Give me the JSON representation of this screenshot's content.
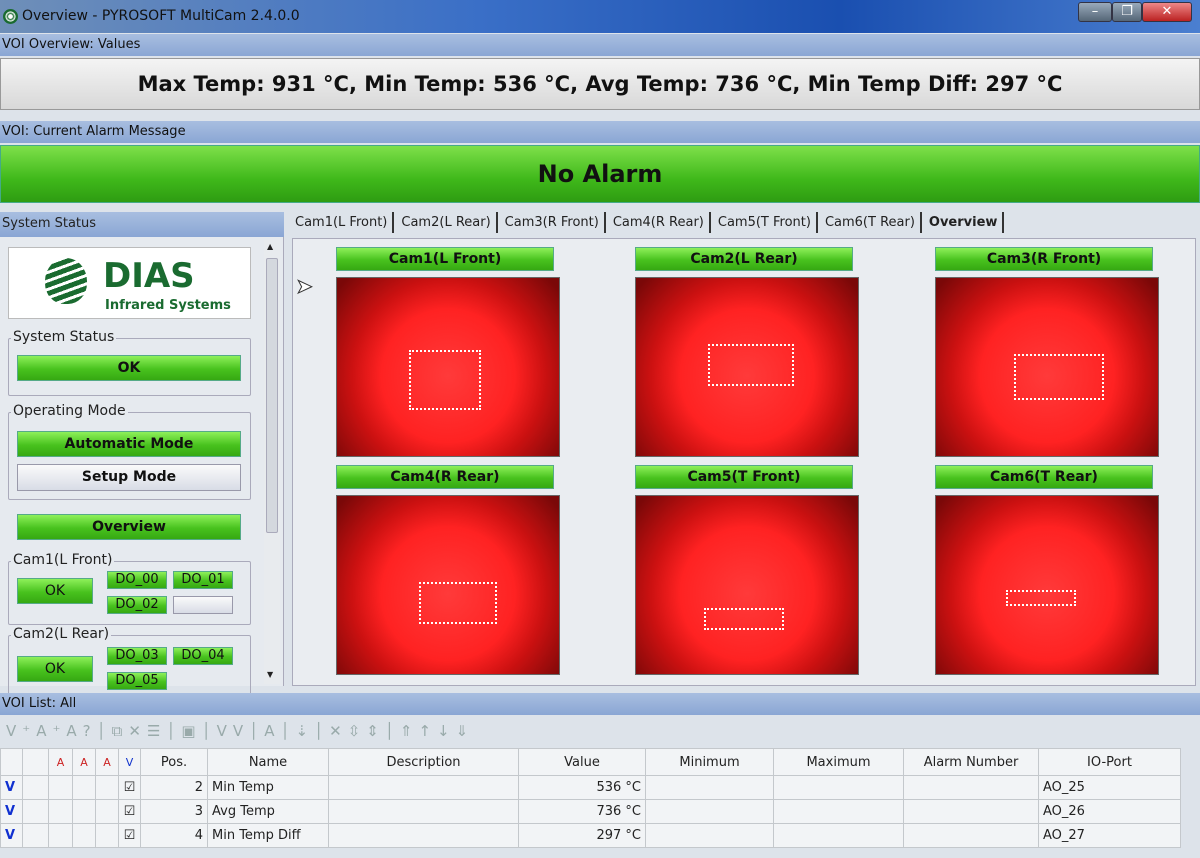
{
  "window": {
    "title": "Overview - PYROSOFT MultiCam 2.4.0.0",
    "minimize": "–",
    "maximize": "❐",
    "close": "✕"
  },
  "voi_overview": {
    "label": "VOI Overview: Values",
    "text": "Max Temp: 931 °C, Min Temp: 536 °C, Avg Temp: 736 °C, Min Temp Diff: 297 °C"
  },
  "alarm": {
    "label": "VOI: Current Alarm Message",
    "text": "No Alarm",
    "color": "#3fb81a"
  },
  "system_status": {
    "header": "System Status",
    "logo_text": "DIAS",
    "logo_sub": "Infrared Systems",
    "status_group": "System Status",
    "status_value": "OK",
    "mode_group": "Operating Mode",
    "auto_mode": "Automatic Mode",
    "setup_mode": "Setup Mode",
    "overview_button": "Overview",
    "cams": [
      {
        "label": "Cam1(L Front)",
        "status": "OK",
        "dos": [
          "DO_00",
          "DO_01",
          "DO_02"
        ]
      },
      {
        "label": "Cam2(L Rear)",
        "status": "OK",
        "dos": [
          "DO_03",
          "DO_04",
          "DO_05"
        ]
      }
    ]
  },
  "tabs": [
    "Cam1(L Front)",
    "Cam2(L Rear)",
    "Cam3(R Front)",
    "Cam4(R Rear)",
    "Cam5(T Front)",
    "Cam6(T Rear)",
    "Overview"
  ],
  "active_tab": "Overview",
  "cameras": [
    "Cam1(L Front)",
    "Cam2(L Rear)",
    "Cam3(R Front)",
    "Cam4(R Rear)",
    "Cam5(T Front)",
    "Cam6(T Rear)"
  ],
  "voi_list": {
    "label": "VOI List: All",
    "columns": [
      "Pos.",
      "Name",
      "Description",
      "Value",
      "Minimum",
      "Maximum",
      "Alarm Number",
      "IO-Port"
    ],
    "rows": [
      {
        "flag": "V",
        "checked": true,
        "pos": "2",
        "name": "Min Temp",
        "description": "",
        "value": "536 °C",
        "minimum": "",
        "maximum": "",
        "alarm": "",
        "io": "AO_25"
      },
      {
        "flag": "V",
        "checked": true,
        "pos": "3",
        "name": "Avg Temp",
        "description": "",
        "value": "736 °C",
        "minimum": "",
        "maximum": "",
        "alarm": "",
        "io": "AO_26"
      },
      {
        "flag": "V",
        "checked": true,
        "pos": "4",
        "name": "Min Temp Diff",
        "description": "",
        "value": "297 °C",
        "minimum": "",
        "maximum": "",
        "alarm": "",
        "io": "AO_27"
      }
    ]
  }
}
